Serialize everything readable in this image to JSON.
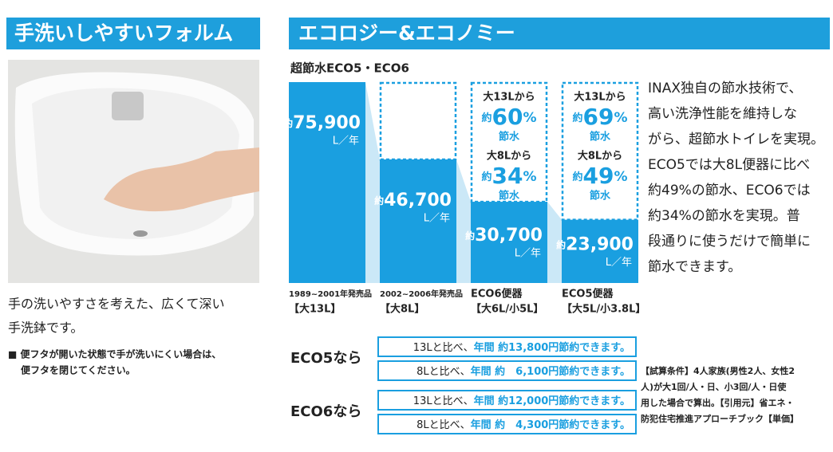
{
  "left": {
    "heading": "手洗いしやすいフォルム",
    "caption_lines": [
      "手の洗いやすさを考えた、広くて深い",
      "手洗鉢です。"
    ],
    "note_lines": [
      "■ 便フタが開いた状態で手が洗いにくい場合は、",
      "便フタを閉じてください。"
    ]
  },
  "right": {
    "heading": "エコロジー&エコノミー",
    "chart": {
      "title": "超節水ECO5・ECO6",
      "prefix": "約",
      "unit": "L／年",
      "values": [
        75900,
        46700,
        30700,
        23900
      ],
      "value_labels": [
        "75,900",
        "46,700",
        "30,700",
        "23,900"
      ],
      "captions": [
        [
          "1989~2001年発売品",
          "【大13L】"
        ],
        [
          "2002~2006年発売品",
          "【大8L】"
        ],
        [
          "ECO6便器",
          "【大6L/小5L】"
        ],
        [
          "ECO5便器",
          "【大5L/小3.8L】"
        ]
      ],
      "savings": [
        null,
        null,
        [
          {
            "from": "大13Lから",
            "pct": 60
          },
          {
            "from": "大8Lから",
            "pct": 34
          }
        ],
        [
          {
            "from": "大13Lから",
            "pct": 69
          },
          {
            "from": "大8Lから",
            "pct": 49
          }
        ]
      ],
      "percent": "%",
      "saving_word": "節水"
    },
    "comparisons": [
      {
        "label": "ECO5なら",
        "rows": [
          [
            "13Lと比べ、",
            "年間 約13,800円",
            "節約できます。"
          ],
          [
            "8Lと比べ、",
            "年間 約　6,100円",
            "節約できます。"
          ]
        ]
      },
      {
        "label": "ECO6なら",
        "rows": [
          [
            "13Lと比べ、",
            "年間 約12,000円",
            "節約できます。"
          ],
          [
            "8Lと比べ、",
            "年間 約　4,300円",
            "節約できます。"
          ]
        ]
      }
    ],
    "paragraph_lines": [
      "INAX独自の節水技術で、",
      "高い洗浄性能を維持しな",
      "がら、超節水トイレを実現。",
      "ECO5では大8L便器に比べ",
      "約49%の節水、ECO6では",
      "約34%の節水を実現。普",
      "段通りに使うだけで簡単に",
      "節水できます。"
    ],
    "conditions_lines": [
      "【試算条件】4人家族(男性2人、女性2",
      "人)が大1回/人・日、小3回/人・日使",
      "用した場合で算出。【引用元】省エネ・",
      "防犯住宅推進アプローチブック【単価】"
    ]
  }
}
